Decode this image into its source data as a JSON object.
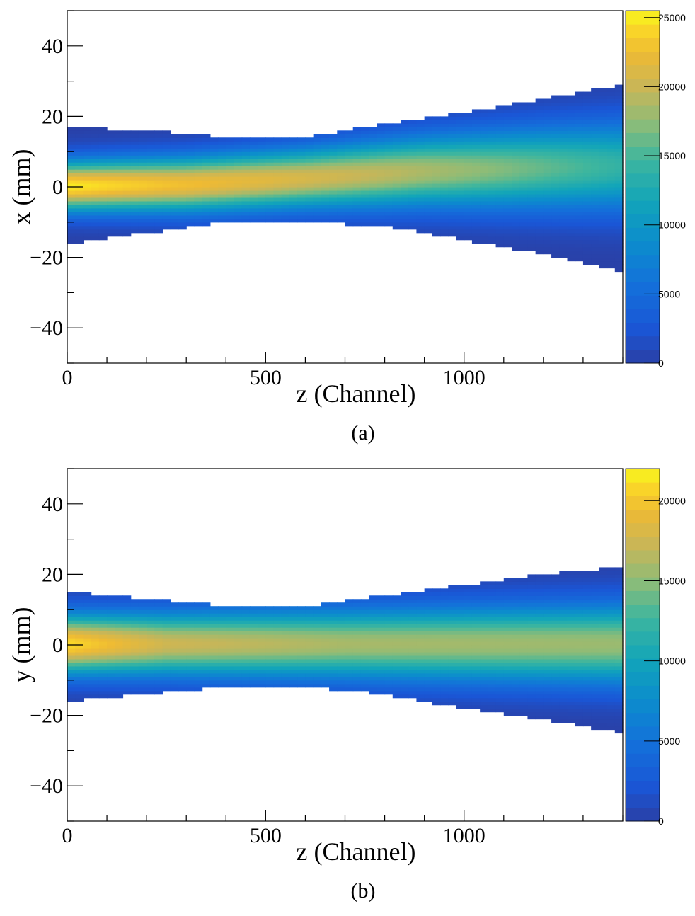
{
  "chart_data": [
    {
      "type": "heatmap",
      "caption": "(a)",
      "xlabel": "z (Channel)",
      "ylabel": "x (mm)",
      "xlim": [
        0,
        1400
      ],
      "ylim": [
        -50,
        50
      ],
      "x_major_ticks": [
        0,
        500,
        1000
      ],
      "x_tick_labels": [
        "0",
        "500",
        "1000"
      ],
      "y_major_ticks": [
        40,
        20,
        0,
        -20,
        -40
      ],
      "y_tick_labels": [
        "40",
        "20",
        "0",
        "−20",
        "−40"
      ],
      "colorbar": {
        "min": 0,
        "max": 25500,
        "ticks": [
          0,
          5000,
          10000,
          15000,
          20000,
          25000
        ],
        "tick_labels": [
          "0",
          "5000",
          "10000",
          "15000",
          "20000",
          "25000"
        ]
      },
      "upper_edge": [
        [
          0,
          17
        ],
        [
          200,
          16
        ],
        [
          400,
          14
        ],
        [
          600,
          14
        ],
        [
          800,
          18
        ],
        [
          1000,
          21
        ],
        [
          1200,
          25
        ],
        [
          1400,
          29
        ]
      ],
      "lower_edge": [
        [
          0,
          -16
        ],
        [
          200,
          -13
        ],
        [
          400,
          -10
        ],
        [
          600,
          -10
        ],
        [
          800,
          -11
        ],
        [
          1000,
          -15
        ],
        [
          1200,
          -19
        ],
        [
          1400,
          -24
        ]
      ],
      "ridge_center": [
        [
          0,
          0.3
        ],
        [
          300,
          0.8
        ],
        [
          600,
          2.5
        ],
        [
          900,
          4.5
        ],
        [
          1200,
          5.5
        ],
        [
          1400,
          6
        ]
      ],
      "ridge_peak": [
        [
          0,
          25000
        ],
        [
          250,
          23000
        ],
        [
          500,
          21500
        ],
        [
          800,
          19500
        ],
        [
          1100,
          17000
        ],
        [
          1400,
          14000
        ]
      ],
      "ridge_width": [
        [
          0,
          5
        ],
        [
          600,
          6
        ],
        [
          1400,
          9
        ]
      ]
    },
    {
      "type": "heatmap",
      "caption": "(b)",
      "xlabel": "z (Channel)",
      "ylabel": "y (mm)",
      "xlim": [
        0,
        1400
      ],
      "ylim": [
        -50,
        50
      ],
      "x_major_ticks": [
        0,
        500,
        1000
      ],
      "x_tick_labels": [
        "0",
        "500",
        "1000"
      ],
      "y_major_ticks": [
        40,
        20,
        0,
        -20,
        -40
      ],
      "y_tick_labels": [
        "40",
        "20",
        "0",
        "−20",
        "−40"
      ],
      "colorbar": {
        "min": 0,
        "max": 22000,
        "ticks": [
          0,
          5000,
          10000,
          15000,
          20000
        ],
        "tick_labels": [
          "0",
          "5000",
          "10000",
          "15000",
          "20000"
        ]
      },
      "upper_edge": [
        [
          0,
          15
        ],
        [
          200,
          13
        ],
        [
          400,
          11
        ],
        [
          600,
          11
        ],
        [
          800,
          14
        ],
        [
          1000,
          17
        ],
        [
          1200,
          20
        ],
        [
          1400,
          22
        ]
      ],
      "lower_edge": [
        [
          0,
          -16
        ],
        [
          200,
          -14
        ],
        [
          400,
          -12
        ],
        [
          600,
          -12
        ],
        [
          800,
          -14
        ],
        [
          1000,
          -18
        ],
        [
          1200,
          -21
        ],
        [
          1400,
          -25
        ]
      ],
      "ridge_center": [
        [
          0,
          0.3
        ],
        [
          1400,
          0.3
        ]
      ],
      "ridge_peak": [
        [
          0,
          21000
        ],
        [
          250,
          17500
        ],
        [
          700,
          16000
        ],
        [
          1400,
          15500
        ]
      ],
      "ridge_width": [
        [
          0,
          6
        ],
        [
          700,
          7
        ],
        [
          1400,
          8
        ]
      ]
    }
  ]
}
